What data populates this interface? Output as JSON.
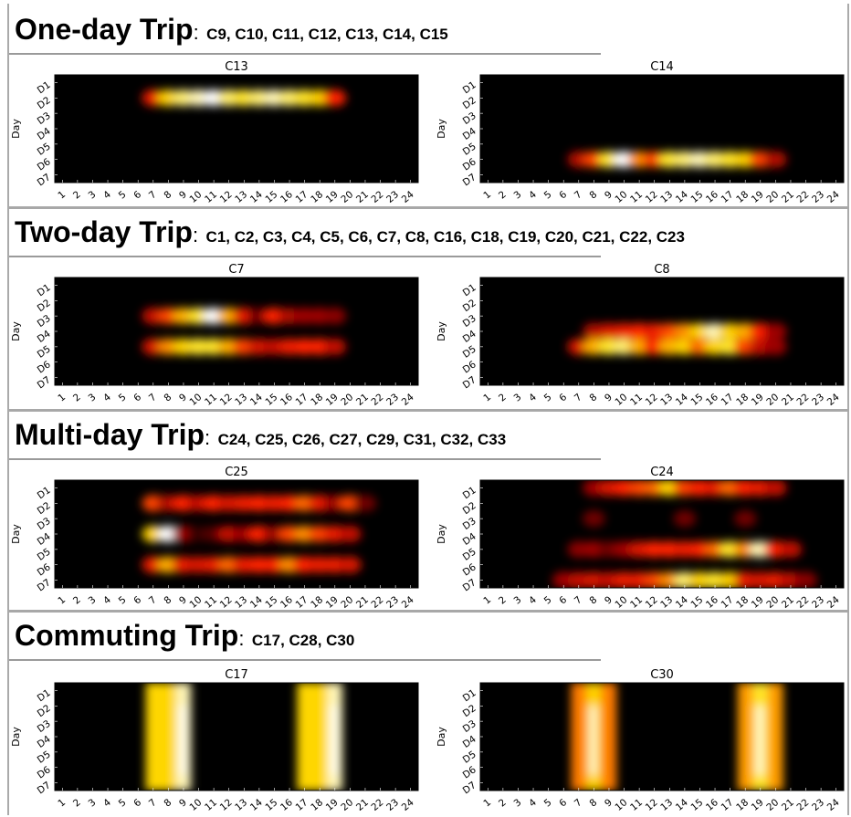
{
  "sections": [
    {
      "title": "One-day Trip",
      "colon": ":",
      "clusters": "C9, C10, C11, C12, C13, C14, C15",
      "charts": [
        {
          "name": "C13",
          "blobs": [
            {
              "row": 2,
              "from": 7,
              "to": 19,
              "peaks": [
                [
                  7,
                  0.5
                ],
                [
                  8,
                  0.8
                ],
                [
                  9,
                  0.9
                ],
                [
                  10,
                  0.95
                ],
                [
                  11,
                  1.0
                ],
                [
                  12,
                  0.9
                ],
                [
                  13,
                  0.85
                ],
                [
                  14,
                  0.9
                ],
                [
                  15,
                  0.95
                ],
                [
                  16,
                  0.9
                ],
                [
                  17,
                  0.85
                ],
                [
                  18,
                  0.8
                ],
                [
                  19,
                  0.55
                ]
              ]
            }
          ]
        },
        {
          "name": "C14",
          "blobs": [
            {
              "row": 6,
              "from": 7,
              "to": 20,
              "peaks": [
                [
                  7,
                  0.35
                ],
                [
                  8,
                  0.6
                ],
                [
                  9,
                  0.85
                ],
                [
                  10,
                  1.0
                ],
                [
                  11,
                  0.7
                ],
                [
                  12,
                  0.6
                ],
                [
                  13,
                  0.85
                ],
                [
                  14,
                  0.9
                ],
                [
                  15,
                  0.95
                ],
                [
                  16,
                  0.9
                ],
                [
                  17,
                  0.85
                ],
                [
                  18,
                  0.8
                ],
                [
                  19,
                  0.6
                ],
                [
                  20,
                  0.35
                ]
              ]
            }
          ]
        }
      ]
    },
    {
      "title": "Two-day Trip",
      "colon": ":",
      "clusters": "C1, C2, C3, C4, C5, C6, C7, C8, C16, C18, C19, C20, C21, C22, C23",
      "charts": [
        {
          "name": "C7",
          "blobs": [
            {
              "row": 3,
              "from": 7,
              "to": 19,
              "peaks": [
                [
                  7,
                  0.4
                ],
                [
                  8,
                  0.6
                ],
                [
                  9,
                  0.75
                ],
                [
                  10,
                  0.85
                ],
                [
                  11,
                  1.0
                ],
                [
                  12,
                  0.75
                ],
                [
                  13,
                  0.5
                ],
                [
                  14,
                  0.2
                ],
                [
                  15,
                  0.55
                ],
                [
                  16,
                  0.35
                ],
                [
                  17,
                  0.3
                ],
                [
                  18,
                  0.3
                ],
                [
                  19,
                  0.25
                ]
              ]
            },
            {
              "row": 5,
              "from": 7,
              "to": 19,
              "peaks": [
                [
                  7,
                  0.45
                ],
                [
                  8,
                  0.7
                ],
                [
                  9,
                  0.8
                ],
                [
                  10,
                  0.85
                ],
                [
                  11,
                  0.85
                ],
                [
                  12,
                  0.75
                ],
                [
                  13,
                  0.6
                ],
                [
                  14,
                  0.45
                ],
                [
                  15,
                  0.4
                ],
                [
                  16,
                  0.5
                ],
                [
                  17,
                  0.55
                ],
                [
                  18,
                  0.55
                ],
                [
                  19,
                  0.4
                ]
              ]
            }
          ]
        },
        {
          "name": "C8",
          "blobs": [
            {
              "row": 4,
              "from": 8,
              "to": 20,
              "peaks": [
                [
                  8,
                  0.35
                ],
                [
                  9,
                  0.45
                ],
                [
                  10,
                  0.5
                ],
                [
                  11,
                  0.55
                ],
                [
                  12,
                  0.5
                ],
                [
                  13,
                  0.6
                ],
                [
                  14,
                  0.7
                ],
                [
                  15,
                  0.8
                ],
                [
                  16,
                  0.95
                ],
                [
                  17,
                  0.8
                ],
                [
                  18,
                  0.75
                ],
                [
                  19,
                  0.55
                ],
                [
                  20,
                  0.3
                ]
              ]
            },
            {
              "row": 5,
              "from": 7,
              "to": 20,
              "peaks": [
                [
                  7,
                  0.45
                ],
                [
                  8,
                  0.75
                ],
                [
                  9,
                  0.85
                ],
                [
                  10,
                  0.9
                ],
                [
                  11,
                  0.75
                ],
                [
                  12,
                  0.55
                ],
                [
                  13,
                  0.75
                ],
                [
                  14,
                  0.8
                ],
                [
                  15,
                  0.65
                ],
                [
                  16,
                  0.8
                ],
                [
                  17,
                  0.85
                ],
                [
                  18,
                  0.6
                ],
                [
                  19,
                  0.4
                ],
                [
                  20,
                  0.3
                ]
              ]
            }
          ]
        }
      ]
    },
    {
      "title": "Multi-day Trip",
      "colon": ":",
      "clusters": "C24, C25, C26, C27, C29, C31, C32, C33",
      "charts": [
        {
          "name": "C25",
          "blobs": [
            {
              "row": 2,
              "from": 7,
              "to": 21,
              "peaks": [
                [
                  7,
                  0.6
                ],
                [
                  8,
                  0.35
                ],
                [
                  9,
                  0.55
                ],
                [
                  10,
                  0.4
                ],
                [
                  11,
                  0.55
                ],
                [
                  12,
                  0.45
                ],
                [
                  13,
                  0.5
                ],
                [
                  14,
                  0.55
                ],
                [
                  15,
                  0.5
                ],
                [
                  16,
                  0.55
                ],
                [
                  17,
                  0.65
                ],
                [
                  18,
                  0.5
                ],
                [
                  19,
                  0.3
                ],
                [
                  20,
                  0.6
                ],
                [
                  21,
                  0.2
                ]
              ]
            },
            {
              "row": 4,
              "from": 7,
              "to": 20,
              "peaks": [
                [
                  7,
                  0.8
                ],
                [
                  8,
                  1.0
                ],
                [
                  9,
                  0.3
                ],
                [
                  10,
                  0.1
                ],
                [
                  11,
                  0.15
                ],
                [
                  12,
                  0.4
                ],
                [
                  13,
                  0.3
                ],
                [
                  14,
                  0.55
                ],
                [
                  15,
                  0.3
                ],
                [
                  16,
                  0.6
                ],
                [
                  17,
                  0.7
                ],
                [
                  18,
                  0.6
                ],
                [
                  19,
                  0.5
                ],
                [
                  20,
                  0.4
                ]
              ]
            },
            {
              "row": 6,
              "from": 7,
              "to": 20,
              "peaks": [
                [
                  7,
                  0.5
                ],
                [
                  8,
                  0.75
                ],
                [
                  9,
                  0.5
                ],
                [
                  10,
                  0.45
                ],
                [
                  11,
                  0.5
                ],
                [
                  12,
                  0.65
                ],
                [
                  13,
                  0.5
                ],
                [
                  14,
                  0.55
                ],
                [
                  15,
                  0.55
                ],
                [
                  16,
                  0.7
                ],
                [
                  17,
                  0.55
                ],
                [
                  18,
                  0.5
                ],
                [
                  19,
                  0.5
                ],
                [
                  20,
                  0.45
                ]
              ]
            }
          ]
        },
        {
          "name": "C24",
          "blobs": [
            {
              "row": 1,
              "from": 8,
              "to": 20,
              "peaks": [
                [
                  8,
                  0.3
                ],
                [
                  9,
                  0.45
                ],
                [
                  10,
                  0.55
                ],
                [
                  11,
                  0.6
                ],
                [
                  12,
                  0.65
                ],
                [
                  13,
                  0.8
                ],
                [
                  14,
                  0.6
                ],
                [
                  15,
                  0.55
                ],
                [
                  16,
                  0.5
                ],
                [
                  17,
                  0.65
                ],
                [
                  18,
                  0.55
                ],
                [
                  19,
                  0.5
                ],
                [
                  20,
                  0.4
                ]
              ]
            },
            {
              "row": 5,
              "from": 7,
              "to": 21,
              "peaks": [
                [
                  7,
                  0.25
                ],
                [
                  8,
                  0.3
                ],
                [
                  9,
                  0.2
                ],
                [
                  10,
                  0.3
                ],
                [
                  11,
                  0.45
                ],
                [
                  12,
                  0.55
                ],
                [
                  13,
                  0.55
                ],
                [
                  14,
                  0.5
                ],
                [
                  15,
                  0.55
                ],
                [
                  16,
                  0.65
                ],
                [
                  17,
                  0.85
                ],
                [
                  18,
                  0.7
                ],
                [
                  19,
                  0.95
                ],
                [
                  20,
                  0.55
                ],
                [
                  21,
                  0.4
                ]
              ]
            },
            {
              "row": 7,
              "from": 6,
              "to": 22,
              "peaks": [
                [
                  6,
                  0.3
                ],
                [
                  7,
                  0.4
                ],
                [
                  8,
                  0.45
                ],
                [
                  9,
                  0.4
                ],
                [
                  10,
                  0.5
                ],
                [
                  11,
                  0.5
                ],
                [
                  12,
                  0.6
                ],
                [
                  13,
                  0.7
                ],
                [
                  14,
                  0.9
                ],
                [
                  15,
                  0.8
                ],
                [
                  16,
                  0.85
                ],
                [
                  17,
                  0.8
                ],
                [
                  18,
                  0.5
                ],
                [
                  19,
                  0.45
                ],
                [
                  20,
                  0.5
                ],
                [
                  21,
                  0.4
                ],
                [
                  22,
                  0.25
                ]
              ]
            },
            {
              "row": 3,
              "from": 8,
              "to": 18,
              "peaks": [
                [
                  8,
                  0.2
                ],
                [
                  14,
                  0.2
                ],
                [
                  18,
                  0.2
                ]
              ]
            }
          ]
        }
      ]
    },
    {
      "title": "Commuting Trip",
      "colon": ":",
      "clusters": "C17, C28, C30",
      "charts": [
        {
          "name": "C17",
          "bands": [
            {
              "from": 7,
              "to": 9,
              "peak": 9,
              "level": 0.95
            },
            {
              "from": 17,
              "to": 19,
              "peak": 19,
              "level": 0.95
            }
          ]
        },
        {
          "name": "C30",
          "bands": [
            {
              "from": 7,
              "to": 9,
              "peak": 8,
              "level": 0.8
            },
            {
              "from": 18,
              "to": 20,
              "peak": 19,
              "level": 0.85
            }
          ]
        }
      ]
    }
  ],
  "axes": {
    "ylabel": "Day",
    "days": [
      "D1",
      "D2",
      "D3",
      "D4",
      "D5",
      "D6",
      "D7"
    ],
    "hours": [
      "1",
      "2",
      "3",
      "4",
      "5",
      "6",
      "7",
      "8",
      "9",
      "10",
      "11",
      "12",
      "13",
      "14",
      "15",
      "16",
      "17",
      "18",
      "19",
      "20",
      "21",
      "22",
      "23",
      "24"
    ]
  },
  "colors": {
    "background": "#000000",
    "low": "#8b0000",
    "mid": "#ff2000",
    "high": "#ffe000",
    "peak": "#ffffff"
  }
}
